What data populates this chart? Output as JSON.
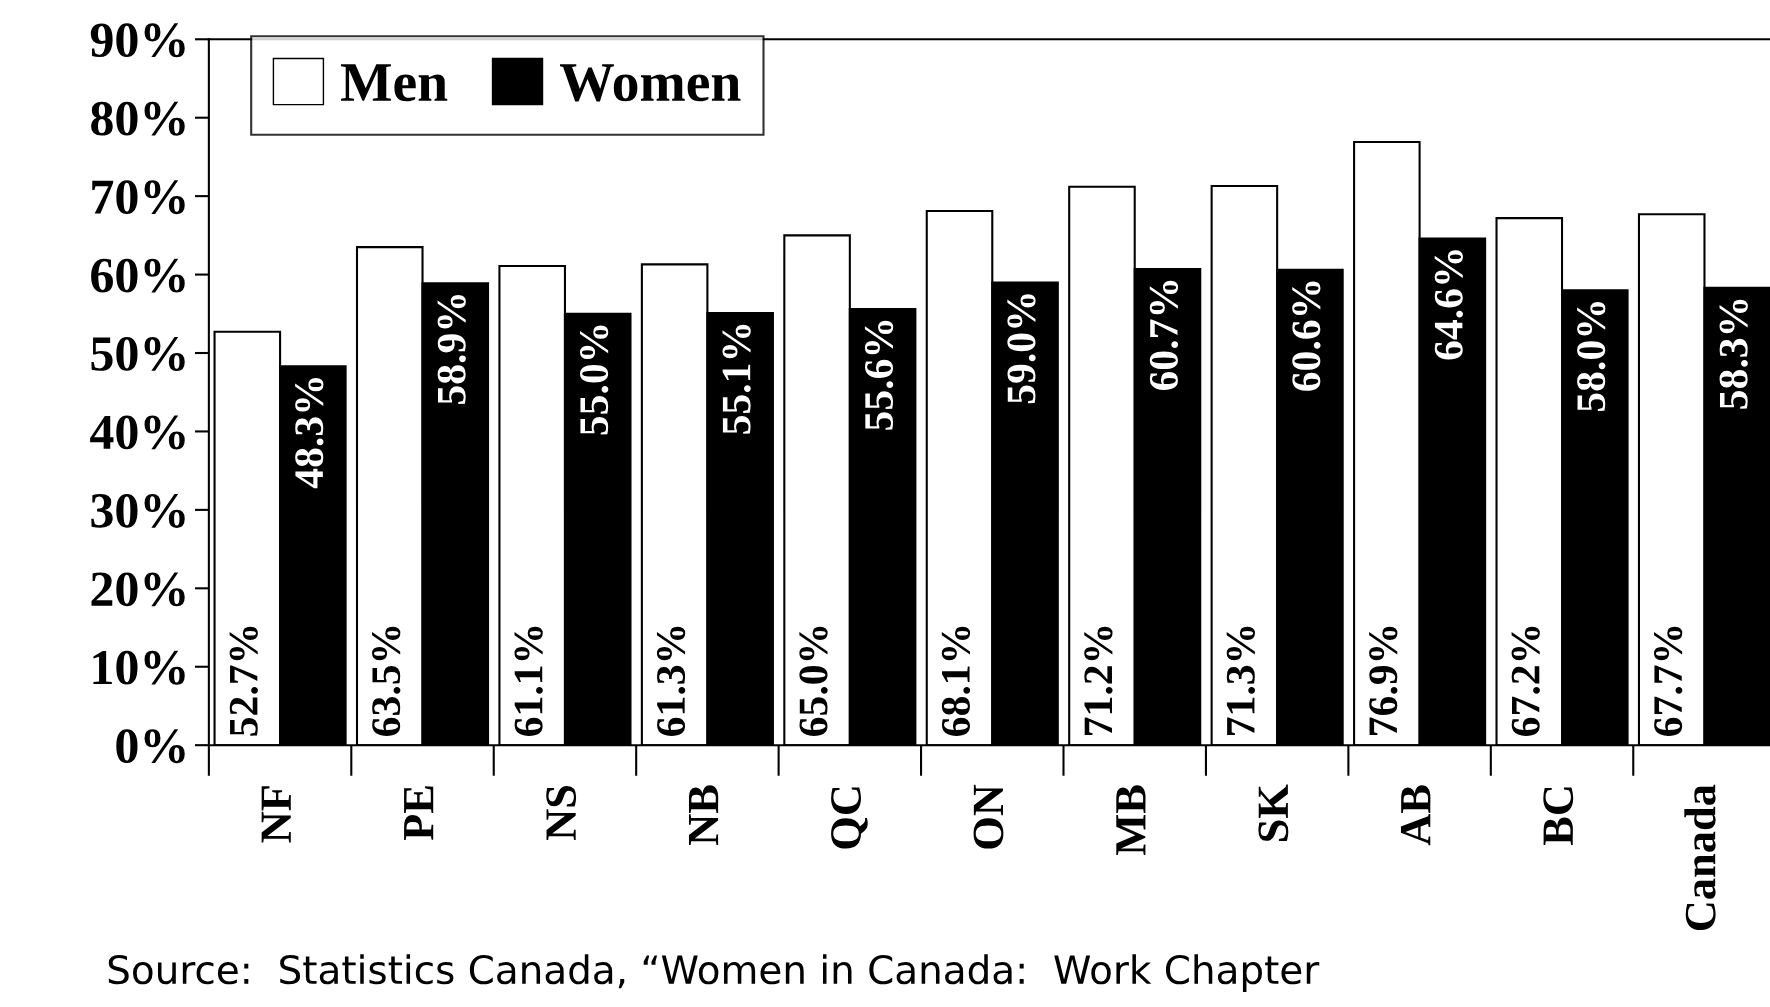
{
  "chart_data": {
    "type": "bar",
    "categories": [
      "NF",
      "PE",
      "NS",
      "NB",
      "QC",
      "ON",
      "MB",
      "SK",
      "AB",
      "BC",
      "Canada"
    ],
    "series": [
      {
        "name": "Men",
        "color": "#ffffff",
        "values": [
          52.7,
          63.5,
          61.1,
          61.3,
          65.0,
          68.1,
          71.2,
          71.3,
          76.9,
          67.2,
          67.7
        ],
        "value_labels": [
          "52.7%",
          "63.5%",
          "61.1%",
          "61.3%",
          "65.0%",
          "68.1%",
          "71.2%",
          "71.3%",
          "76.9%",
          "67.2%",
          "67.7%"
        ]
      },
      {
        "name": "Women",
        "color": "#000000",
        "values": [
          48.3,
          58.9,
          55.0,
          55.1,
          55.6,
          59.0,
          60.7,
          60.6,
          64.6,
          58.0,
          58.3
        ],
        "value_labels": [
          "48.3%",
          "58.9%",
          "55.0%",
          "55.1%",
          "55.6%",
          "59.0%",
          "60.7%",
          "60.6%",
          "64.6%",
          "58.0%",
          "58.3%"
        ]
      }
    ],
    "ylim": [
      0,
      90
    ],
    "yticks": [
      {
        "value": 0,
        "label": "0%"
      },
      {
        "value": 10,
        "label": "10%"
      },
      {
        "value": 20,
        "label": "20%"
      },
      {
        "value": 30,
        "label": "30%"
      },
      {
        "value": 40,
        "label": "40%"
      },
      {
        "value": 50,
        "label": "50%"
      },
      {
        "value": 60,
        "label": "60%"
      },
      {
        "value": 70,
        "label": "70%"
      },
      {
        "value": 80,
        "label": "80%"
      },
      {
        "value": 90,
        "label": "90%"
      }
    ],
    "grid": false,
    "legend": "top left",
    "annotations": [
      "Source:  Statistics Canada, “Women in Canada:  Work Chapter"
    ]
  }
}
